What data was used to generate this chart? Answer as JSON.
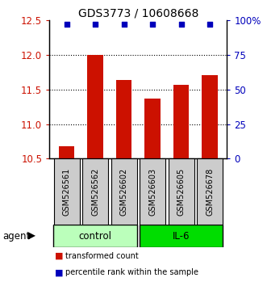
{
  "title": "GDS3773 / 10608668",
  "samples": [
    "GSM526561",
    "GSM526562",
    "GSM526602",
    "GSM526603",
    "GSM526605",
    "GSM526678"
  ],
  "bar_values": [
    10.68,
    12.0,
    11.63,
    11.37,
    11.57,
    11.7
  ],
  "percentile_values": [
    97,
    97,
    97,
    97,
    97,
    97
  ],
  "bar_color": "#cc1100",
  "percentile_color": "#0000bb",
  "ylim_left": [
    10.5,
    12.5
  ],
  "ylim_right": [
    0,
    100
  ],
  "yticks_left": [
    10.5,
    11.0,
    11.5,
    12.0,
    12.5
  ],
  "yticks_right": [
    0,
    25,
    50,
    75,
    100
  ],
  "ytick_labels_right": [
    "0",
    "25",
    "50",
    "75",
    "100%"
  ],
  "groups": [
    {
      "label": "control",
      "indices": [
        0,
        1,
        2
      ],
      "color": "#bbffbb"
    },
    {
      "label": "IL-6",
      "indices": [
        3,
        4,
        5
      ],
      "color": "#00dd00"
    }
  ],
  "agent_label": "agent",
  "legend_items": [
    {
      "label": "transformed count",
      "color": "#cc1100"
    },
    {
      "label": "percentile rank within the sample",
      "color": "#0000bb"
    }
  ],
  "grid_color": "black",
  "background_color": "#ffffff",
  "bar_width": 0.55,
  "sample_box_color": "#cccccc"
}
